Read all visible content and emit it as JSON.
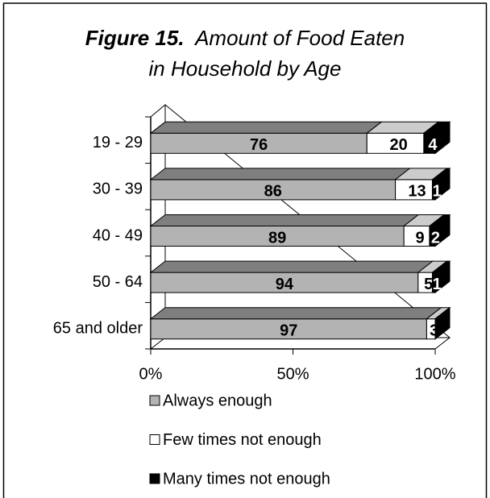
{
  "chart_data": {
    "type": "stacked-bar-3d",
    "figure_label": "Figure 15.",
    "title": "Amount of Food Eaten in Household by Age",
    "categories": [
      "19 - 29",
      "30 - 39",
      "40 - 49",
      "50 - 64",
      "65 and older"
    ],
    "series": [
      {
        "name": "Always enough",
        "color": "#b3b3b3",
        "top_color": "#7f7f7f",
        "values": [
          76,
          86,
          89,
          94,
          97
        ]
      },
      {
        "name": "Few times not enough",
        "color": "#ffffff",
        "top_color": "#cccccc",
        "values": [
          20,
          13,
          9,
          5,
          3
        ]
      },
      {
        "name": "Many times not enough",
        "color": "#000000",
        "top_color": "#000000",
        "values": [
          4,
          1,
          2,
          1,
          0
        ]
      }
    ],
    "xlim": [
      0,
      100
    ],
    "xticks": [
      {
        "value": 0,
        "label": "0%"
      },
      {
        "value": 50,
        "label": "50%"
      },
      {
        "value": 100,
        "label": "100%"
      }
    ]
  }
}
